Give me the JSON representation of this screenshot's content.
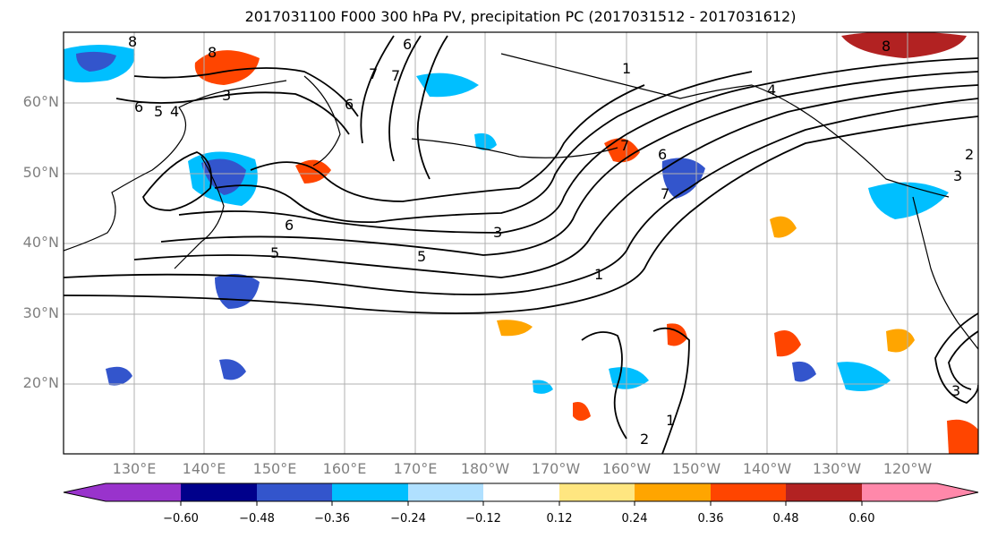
{
  "title": "2017031100 F000 300 hPa PV, precipitation PC (2017031512 - 2017031612)",
  "lat_labels": [
    "60°N",
    "50°N",
    "40°N",
    "30°N",
    "20°N"
  ],
  "lon_labels": [
    "130°E",
    "140°E",
    "150°E",
    "160°E",
    "170°E",
    "180°W",
    "170°W",
    "160°W",
    "150°W",
    "140°W",
    "130°W",
    "120°W"
  ],
  "colorbar": {
    "tick_labels": [
      "−0.60",
      "−0.48",
      "−0.36",
      "−0.24",
      "−0.12",
      "0.12",
      "0.24",
      "0.36",
      "0.48",
      "0.60"
    ],
    "colors": [
      "#9933cc",
      "#00008b",
      "#3355cc",
      "#00bfff",
      "#b0e0ff",
      "#ffffff",
      "#ffe680",
      "#ffa500",
      "#ff4500",
      "#b22222",
      "#ff88aa"
    ]
  },
  "contour_labels": [
    "8",
    "8",
    "3",
    "6",
    "5",
    "4",
    "7",
    "6",
    "7",
    "6",
    "6",
    "5",
    "5",
    "3",
    "7",
    "1",
    "6",
    "7",
    "4",
    "3",
    "2",
    "1",
    "2",
    "1",
    "3",
    "8"
  ],
  "colors": {
    "precip_pos": [
      "#ffa500",
      "#ff4500"
    ],
    "precip_neg": [
      "#00bfff",
      "#3355cc"
    ],
    "grid": "#b0b0b0",
    "contour": "#000000"
  }
}
